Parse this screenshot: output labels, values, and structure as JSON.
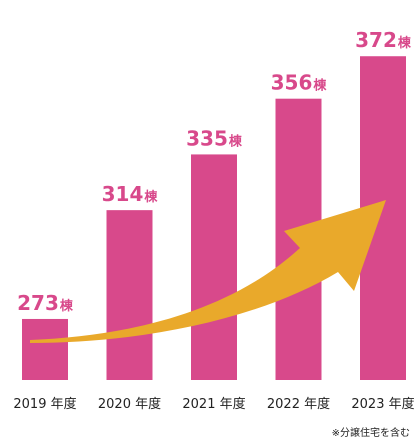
{
  "chart_data": {
    "type": "bar",
    "categories": [
      "2019 年度",
      "2020 年度",
      "2021 年度",
      "2022 年度",
      "2023 年度"
    ],
    "values": [
      273,
      314,
      335,
      356,
      372
    ],
    "value_unit": "棟",
    "title": "",
    "xlabel": "",
    "ylabel": "",
    "ylim": [
      250,
      380
    ],
    "grid": false,
    "legend": "none",
    "annotation": "increasing-trend-arrow"
  },
  "note": "※分譲住宅を含む",
  "colors": {
    "bar": "#d8498b",
    "label": "#d8498b",
    "arrow": "#e9a92b",
    "text": "#222222"
  }
}
